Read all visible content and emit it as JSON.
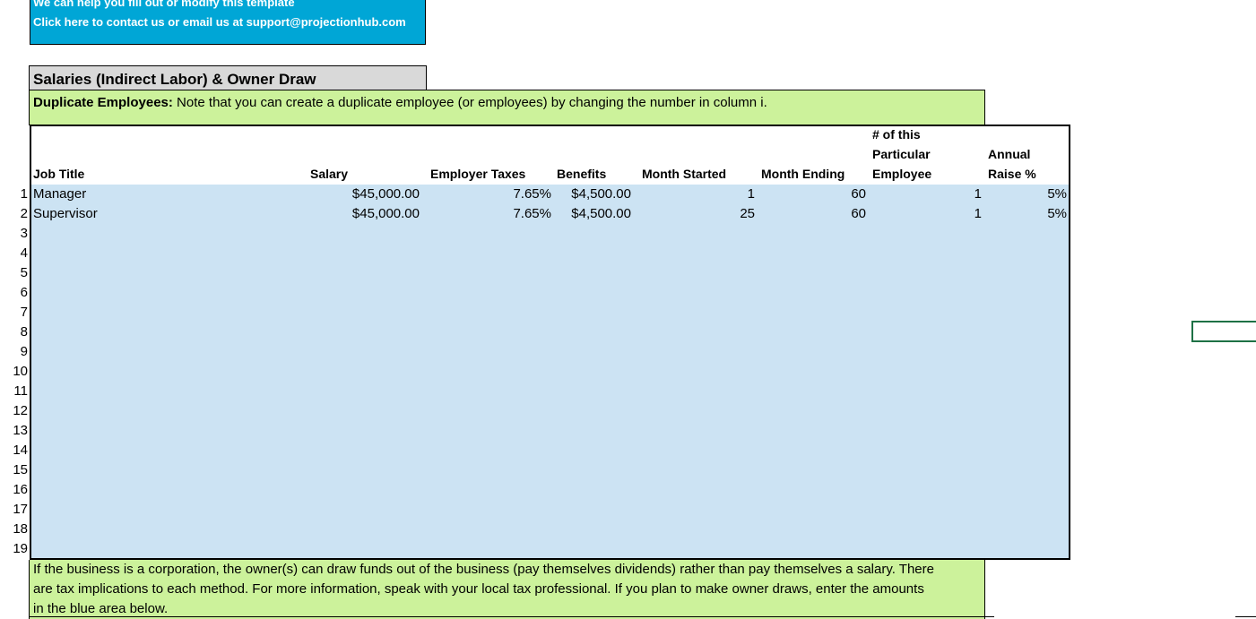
{
  "help": {
    "line1": "We can help you fill out or modify this template",
    "line2": "Click here to contact us or email us at support@projectionhub.com"
  },
  "section": {
    "title": "Salaries (Indirect Labor) & Owner Draw"
  },
  "duplicate_note": {
    "label": "Duplicate Employees:",
    "text": " Note that you can create a duplicate employee (or employees) by changing the number in column i."
  },
  "columns": {
    "job_title": "Job Title",
    "salary": "Salary",
    "employer_taxes": "Employer Taxes",
    "benefits": "Benefits",
    "month_started": "Month Started",
    "month_ending": "Month Ending",
    "count_line1": "# of this",
    "count_line2": "Particular",
    "count_line3": "Employee",
    "raise_line1": "Annual",
    "raise_line2": "Raise %"
  },
  "rows": [
    {
      "num": "1",
      "job_title": "Manager",
      "salary": "$45,000.00",
      "employer_taxes": "7.65%",
      "benefits": "$4,500.00",
      "month_started": "1",
      "month_ending": "60",
      "count": "1",
      "raise": "5%"
    },
    {
      "num": "2",
      "job_title": "Supervisor",
      "salary": "$45,000.00",
      "employer_taxes": "7.65%",
      "benefits": "$4,500.00",
      "month_started": "25",
      "month_ending": "60",
      "count": "1",
      "raise": "5%"
    }
  ],
  "empty_row_numbers": [
    "3",
    "4",
    "5",
    "6",
    "7",
    "8",
    "9",
    "10",
    "11",
    "12",
    "13",
    "14",
    "15",
    "16",
    "17",
    "18",
    "19"
  ],
  "owner_note": {
    "line1": "If the business is a corporation, the owner(s) can draw funds out of the business (pay themselves dividends) rather than pay themselves a salary. There",
    "line2": "are tax implications to each method. For more information, speak with your local tax professional. If you plan to make owner draws, enter the amounts",
    "line3": "in the blue area below."
  }
}
